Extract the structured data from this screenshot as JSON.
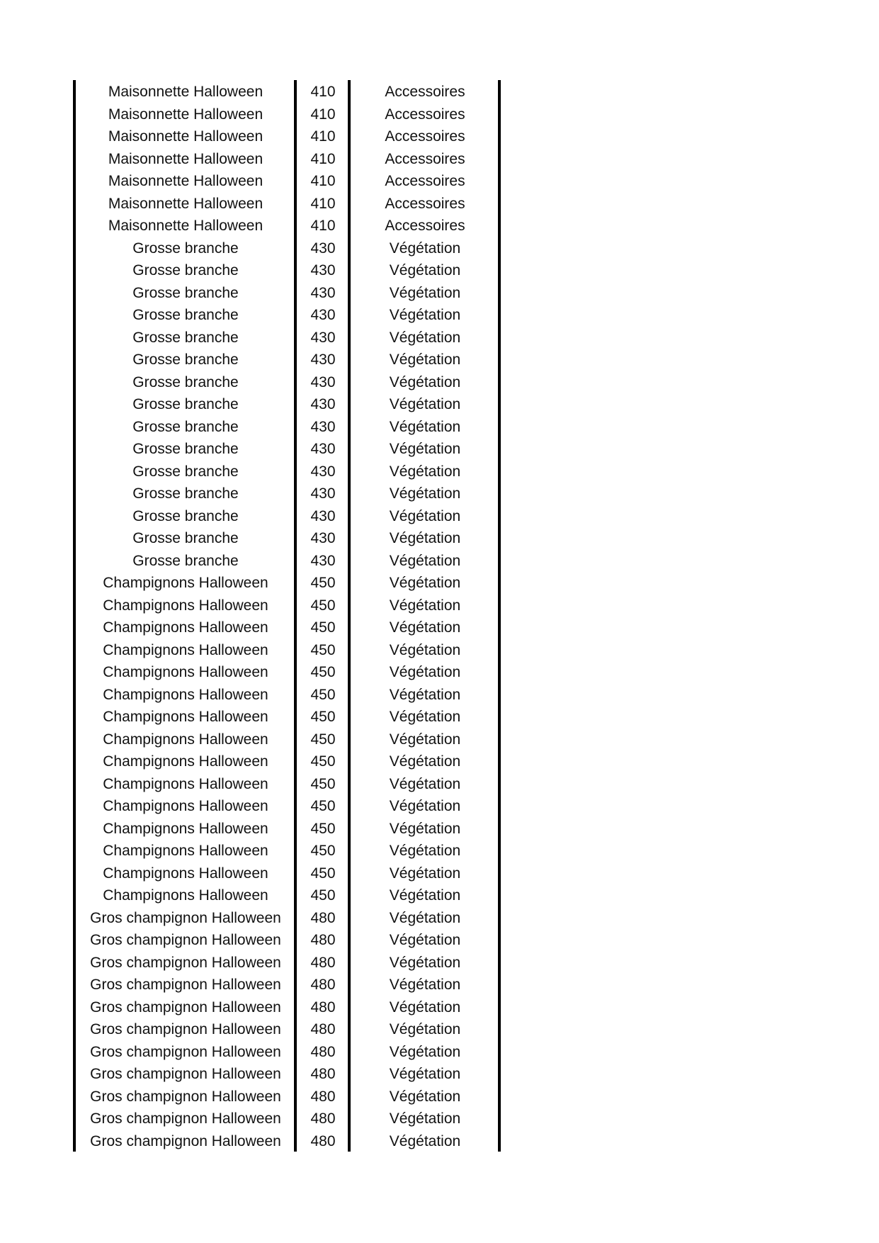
{
  "table": {
    "rows": [
      {
        "name": "Maisonnette Halloween",
        "code": "410",
        "category": "Accessoires"
      },
      {
        "name": "Maisonnette Halloween",
        "code": "410",
        "category": "Accessoires"
      },
      {
        "name": "Maisonnette Halloween",
        "code": "410",
        "category": "Accessoires"
      },
      {
        "name": "Maisonnette Halloween",
        "code": "410",
        "category": "Accessoires"
      },
      {
        "name": "Maisonnette Halloween",
        "code": "410",
        "category": "Accessoires"
      },
      {
        "name": "Maisonnette Halloween",
        "code": "410",
        "category": "Accessoires"
      },
      {
        "name": "Maisonnette Halloween",
        "code": "410",
        "category": "Accessoires"
      },
      {
        "name": "Grosse branche",
        "code": "430",
        "category": "Végétation"
      },
      {
        "name": "Grosse branche",
        "code": "430",
        "category": "Végétation"
      },
      {
        "name": "Grosse branche",
        "code": "430",
        "category": "Végétation"
      },
      {
        "name": "Grosse branche",
        "code": "430",
        "category": "Végétation"
      },
      {
        "name": "Grosse branche",
        "code": "430",
        "category": "Végétation"
      },
      {
        "name": "Grosse branche",
        "code": "430",
        "category": "Végétation"
      },
      {
        "name": "Grosse branche",
        "code": "430",
        "category": "Végétation"
      },
      {
        "name": "Grosse branche",
        "code": "430",
        "category": "Végétation"
      },
      {
        "name": "Grosse branche",
        "code": "430",
        "category": "Végétation"
      },
      {
        "name": "Grosse branche",
        "code": "430",
        "category": "Végétation"
      },
      {
        "name": "Grosse branche",
        "code": "430",
        "category": "Végétation"
      },
      {
        "name": "Grosse branche",
        "code": "430",
        "category": "Végétation"
      },
      {
        "name": "Grosse branche",
        "code": "430",
        "category": "Végétation"
      },
      {
        "name": "Grosse branche",
        "code": "430",
        "category": "Végétation"
      },
      {
        "name": "Grosse branche",
        "code": "430",
        "category": "Végétation"
      },
      {
        "name": "Champignons Halloween",
        "code": "450",
        "category": "Végétation"
      },
      {
        "name": "Champignons Halloween",
        "code": "450",
        "category": "Végétation"
      },
      {
        "name": "Champignons Halloween",
        "code": "450",
        "category": "Végétation"
      },
      {
        "name": "Champignons Halloween",
        "code": "450",
        "category": "Végétation"
      },
      {
        "name": "Champignons Halloween",
        "code": "450",
        "category": "Végétation"
      },
      {
        "name": "Champignons Halloween",
        "code": "450",
        "category": "Végétation"
      },
      {
        "name": "Champignons Halloween",
        "code": "450",
        "category": "Végétation"
      },
      {
        "name": "Champignons Halloween",
        "code": "450",
        "category": "Végétation"
      },
      {
        "name": "Champignons Halloween",
        "code": "450",
        "category": "Végétation"
      },
      {
        "name": "Champignons Halloween",
        "code": "450",
        "category": "Végétation"
      },
      {
        "name": "Champignons Halloween",
        "code": "450",
        "category": "Végétation"
      },
      {
        "name": "Champignons Halloween",
        "code": "450",
        "category": "Végétation"
      },
      {
        "name": "Champignons Halloween",
        "code": "450",
        "category": "Végétation"
      },
      {
        "name": "Champignons Halloween",
        "code": "450",
        "category": "Végétation"
      },
      {
        "name": "Champignons Halloween",
        "code": "450",
        "category": "Végétation"
      },
      {
        "name": "Gros champignon Halloween",
        "code": "480",
        "category": "Végétation"
      },
      {
        "name": "Gros champignon Halloween",
        "code": "480",
        "category": "Végétation"
      },
      {
        "name": "Gros champignon Halloween",
        "code": "480",
        "category": "Végétation"
      },
      {
        "name": "Gros champignon Halloween",
        "code": "480",
        "category": "Végétation"
      },
      {
        "name": "Gros champignon Halloween",
        "code": "480",
        "category": "Végétation"
      },
      {
        "name": "Gros champignon Halloween",
        "code": "480",
        "category": "Végétation"
      },
      {
        "name": "Gros champignon Halloween",
        "code": "480",
        "category": "Végétation"
      },
      {
        "name": "Gros champignon Halloween",
        "code": "480",
        "category": "Végétation"
      },
      {
        "name": "Gros champignon Halloween",
        "code": "480",
        "category": "Végétation"
      },
      {
        "name": "Gros champignon Halloween",
        "code": "480",
        "category": "Végétation"
      },
      {
        "name": "Gros champignon Halloween",
        "code": "480",
        "category": "Végétation"
      }
    ]
  }
}
